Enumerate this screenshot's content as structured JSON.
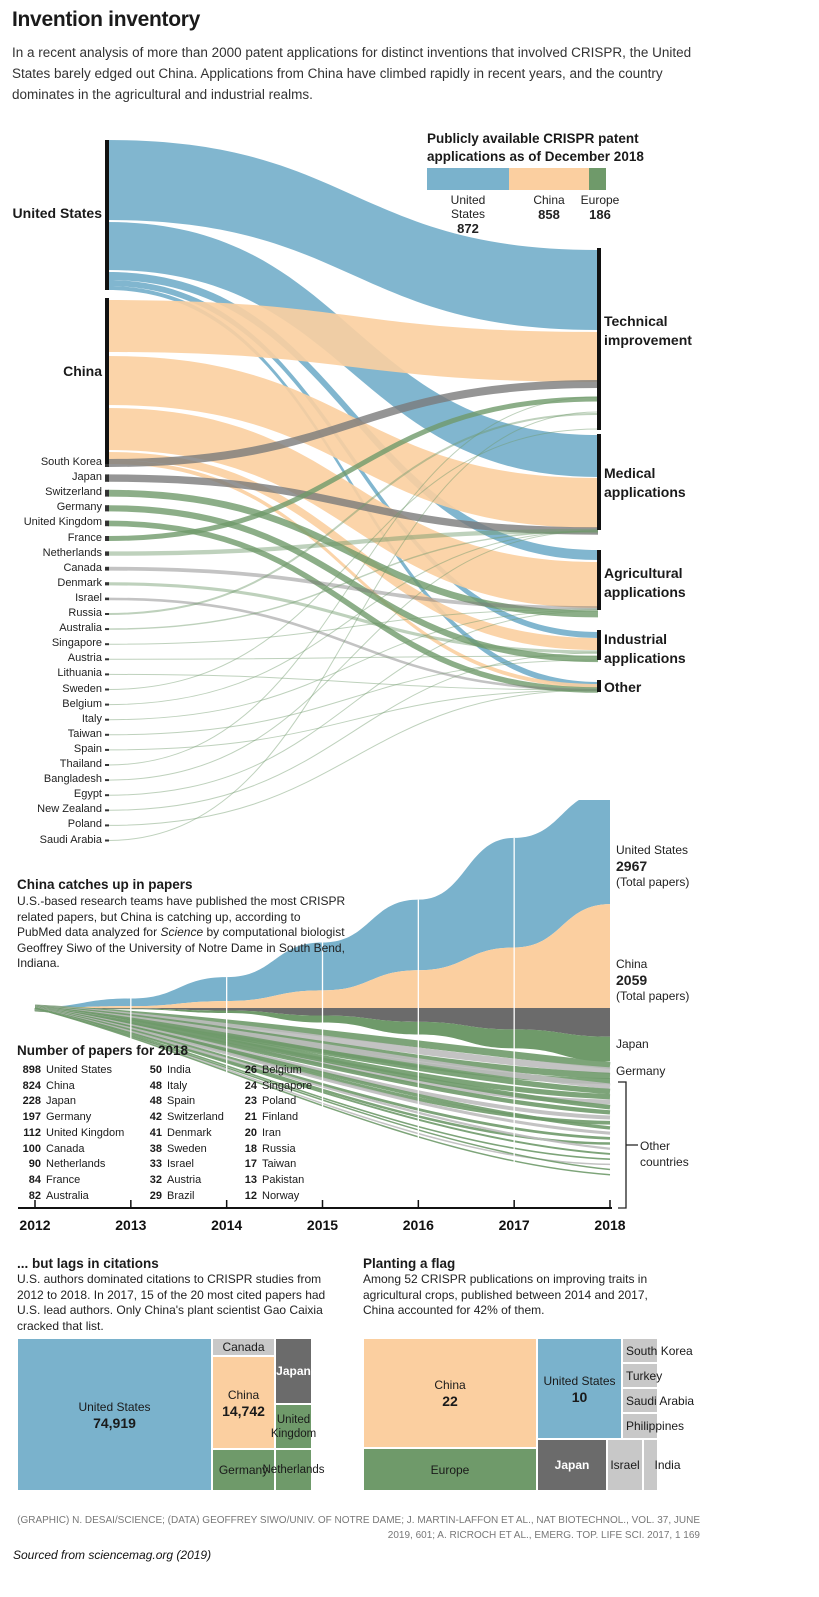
{
  "header": {
    "title": "Invention inventory",
    "intro": "In a recent analysis of more than 2000 patent applications for distinct inventions that involved CRISPR, the United States barely edged out China. Applications from China have climbed rapidly in recent years, and the country dominates in the agricultural and industrial realms."
  },
  "colors": {
    "us": "#7ab2cc",
    "china": "#fbcfa0",
    "europe": "#6f9a6a",
    "japan": "#6b6b6b",
    "other": "#c8c8c8",
    "korea": "#7a7a7a"
  },
  "patents": {
    "legend_title": "Publicly available CRISPR patent applications as of December 2018",
    "legend": [
      {
        "name": "United States",
        "value": "872"
      },
      {
        "name": "China",
        "value": "858"
      },
      {
        "name": "Europe",
        "value": "186"
      }
    ],
    "sources_big": [
      "United States",
      "China"
    ],
    "sources_small": [
      "South Korea",
      "Japan",
      "Switzerland",
      "Germany",
      "United Kingdom",
      "France",
      "Netherlands",
      "Canada",
      "Denmark",
      "Israel",
      "Russia",
      "Australia",
      "Singapore",
      "Austria",
      "Lithuania",
      "Sweden",
      "Belgium",
      "Italy",
      "Taiwan",
      "Spain",
      "Thailand",
      "Bangladesh",
      "Egypt",
      "New Zealand",
      "Poland",
      "Saudi Arabia"
    ],
    "categories": [
      {
        "line1": "Technical",
        "line2": "improvement"
      },
      {
        "line1": "Medical",
        "line2": "applications"
      },
      {
        "line1": "Agricultural",
        "line2": "applications"
      },
      {
        "line1": "Industrial",
        "line2": "applications"
      },
      {
        "line1": "Other",
        "line2": ""
      }
    ]
  },
  "papers": {
    "title": "China catches up in papers",
    "text_pre": "U.S.-based research teams have published the most CRISPR related papers, but China is catching up, according to PubMed data analyzed for ",
    "text_em": "Science",
    "text_post": " by computational biologist Geoffrey Siwo of the University of Notre Dame in South Bend, Indiana.",
    "labels": {
      "us_name": "United States",
      "us_total": "2967",
      "total_caption": "(Total papers)",
      "china_name": "China",
      "china_total": "2059",
      "japan": "Japan",
      "germany": "Germany",
      "other": "Other countries"
    },
    "table_title": "Number of papers for 2018",
    "table": [
      [
        [
          "898",
          "United States"
        ],
        [
          "824",
          "China"
        ],
        [
          "228",
          "Japan"
        ],
        [
          "197",
          "Germany"
        ],
        [
          "112",
          "United Kingdom"
        ],
        [
          "100",
          "Canada"
        ],
        [
          "90",
          "Netherlands"
        ],
        [
          "84",
          "France"
        ],
        [
          "82",
          "Australia"
        ]
      ],
      [
        [
          "50",
          "India"
        ],
        [
          "48",
          "Italy"
        ],
        [
          "48",
          "Spain"
        ],
        [
          "42",
          "Switzerland"
        ],
        [
          "41",
          "Denmark"
        ],
        [
          "38",
          "Sweden"
        ],
        [
          "33",
          "Israel"
        ],
        [
          "32",
          "Austria"
        ],
        [
          "29",
          "Brazil"
        ]
      ],
      [
        [
          "26",
          "Belgium"
        ],
        [
          "24",
          "Singapore"
        ],
        [
          "23",
          "Poland"
        ],
        [
          "21",
          "Finland"
        ],
        [
          "20",
          "Iran"
        ],
        [
          "18",
          "Russia"
        ],
        [
          "17",
          "Taiwan"
        ],
        [
          "13",
          "Pakistan"
        ],
        [
          "12",
          "Norway"
        ]
      ]
    ]
  },
  "chart_data": {
    "type": "area",
    "x": [
      "2012",
      "2013",
      "2014",
      "2015",
      "2016",
      "2017",
      "2018"
    ],
    "series": [
      {
        "name": "United States",
        "values": [
          5,
          60,
          190,
          380,
          560,
          870,
          898
        ]
      },
      {
        "name": "China",
        "values": [
          1,
          15,
          55,
          140,
          300,
          480,
          824
        ]
      },
      {
        "name": "Japan",
        "values": [
          1,
          5,
          20,
          60,
          110,
          170,
          228
        ]
      },
      {
        "name": "Germany",
        "values": [
          1,
          5,
          20,
          55,
          100,
          150,
          197
        ]
      }
    ]
  },
  "citations": {
    "title": "... but lags in citations",
    "text": "U.S. authors dominated citations to CRISPR studies from 2012 to 2018. In 2017, 15 of the 20 most cited papers had U.S. lead authors. Only China's plant scientist Gao Caixia cracked that list.",
    "us_name": "United States",
    "us_value": "74,919",
    "canada": "Canada",
    "china_name": "China",
    "china_value": "14,742",
    "japan": "Japan",
    "uk": "United Kingdom",
    "germany": "Germany",
    "netherlands": "Netherlands"
  },
  "flag": {
    "title": "Planting a flag",
    "text": "Among 52 CRISPR publications on improving traits in agricultural crops, published between 2014 and 2017, China accounted for 42% of them.",
    "china_name": "China",
    "china_value": "22",
    "us_name": "United States",
    "us_value": "10",
    "europe": "Europe",
    "japan": "Japan",
    "korea": "South Korea",
    "turkey": "Turkey",
    "saudi": "Saudi Arabia",
    "philippines": "Philippines",
    "israel": "Israel",
    "india": "India"
  },
  "footer": {
    "credit_line1": "(GRAPHIC) N. DESAI/SCIENCE; (DATA) GEOFFREY SIWO/UNIV. OF NOTRE DAME; J. MARTIN-LAFFON ET AL., NAT BIOTECHNOL., VOL. 37, JUNE",
    "credit_line2": "2019, 601; A. RICROCH ET AL., EMERG. TOP. LIFE SCI. 2017, 1 169",
    "source": "Sourced from sciencemag.org (2019)"
  }
}
